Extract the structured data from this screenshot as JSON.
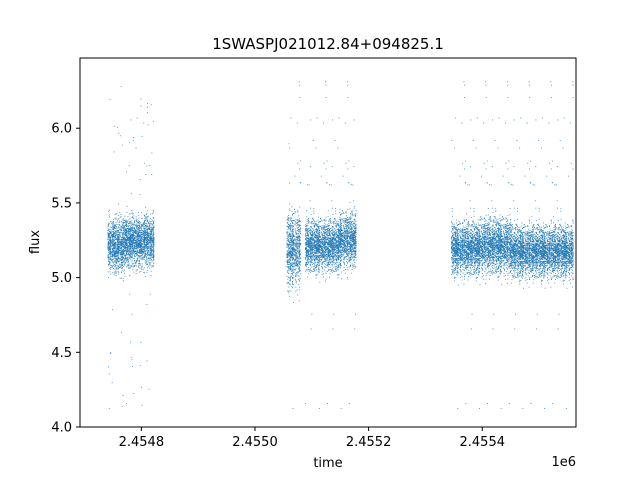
{
  "chart_data": {
    "type": "scatter",
    "title": "1SWASPJ021012.84+094825.1",
    "xlabel": "time",
    "ylabel": "flux",
    "x_offset_label": "1e6",
    "xlim": [
      2454692,
      2455565
    ],
    "ylim": [
      4.0,
      6.47
    ],
    "x_ticks": [
      2454800,
      2455000,
      2455200,
      2455400
    ],
    "x_tick_labels": [
      "2.4548",
      "2.4550",
      "2.4552",
      "2.4554"
    ],
    "y_ticks": [
      4.0,
      4.5,
      5.0,
      5.5,
      6.0
    ],
    "y_tick_labels": [
      "4.0",
      "4.5",
      "5.0",
      "5.5",
      "6.0"
    ],
    "grid": false,
    "marker_color": "#1f77b4",
    "segments": [
      {
        "start": 2454740,
        "end": 2454770,
        "center": 5.22,
        "spread": 0.16
      },
      {
        "start": 2454770,
        "end": 2454822,
        "center": 5.25,
        "spread": 0.15
      },
      {
        "start": 2455055,
        "end": 2455080,
        "center": 5.2,
        "spread": 0.22
      },
      {
        "start": 2455088,
        "end": 2455148,
        "center": 5.22,
        "spread": 0.15
      },
      {
        "start": 2455148,
        "end": 2455178,
        "center": 5.26,
        "spread": 0.16
      },
      {
        "start": 2455345,
        "end": 2455395,
        "center": 5.2,
        "spread": 0.15
      },
      {
        "start": 2455395,
        "end": 2455450,
        "center": 5.22,
        "spread": 0.16
      },
      {
        "start": 2455450,
        "end": 2455560,
        "center": 5.18,
        "spread": 0.15
      }
    ],
    "outlier_range": [
      4.1,
      6.35
    ]
  }
}
